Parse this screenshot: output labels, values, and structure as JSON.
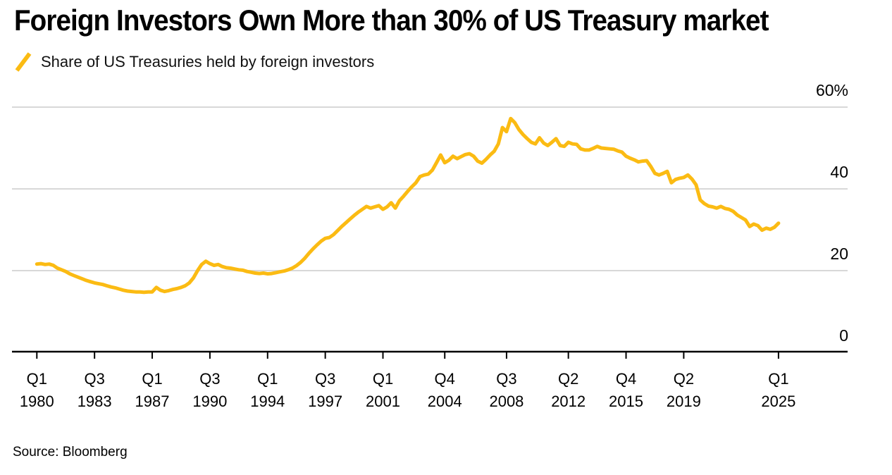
{
  "title": "Foreign Investors Own More than 30% of US Treasury market",
  "legend": {
    "label": "Share of US Treasuries held by foreign investors"
  },
  "source": "Source: Bloomberg",
  "colors": {
    "line": "#FBBB13",
    "grid": "#D8D8D8",
    "axis": "#000000",
    "text": "#000000"
  },
  "chart_data": {
    "type": "line",
    "title": "Foreign Investors Own More than 30% of US Treasury market",
    "series_name": "Share of US Treasuries held by foreign investors",
    "unit": "%",
    "x_start": "1980Q1",
    "x_end": "2025Q1",
    "x_step": "1 quarter",
    "ylim": [
      0,
      60
    ],
    "grid": "horizontal",
    "legend_position": "top-left",
    "y_ticks": [
      {
        "label": "60%",
        "value": 60
      },
      {
        "label": "40",
        "value": 40
      },
      {
        "label": "20",
        "value": 20
      },
      {
        "label": "0",
        "value": 0
      }
    ],
    "x_ticks": [
      {
        "quarter": "Q1",
        "year": "1980",
        "index": 0
      },
      {
        "quarter": "Q3",
        "year": "1983",
        "index": 14
      },
      {
        "quarter": "Q1",
        "year": "1987",
        "index": 28
      },
      {
        "quarter": "Q3",
        "year": "1990",
        "index": 42
      },
      {
        "quarter": "Q1",
        "year": "1994",
        "index": 56
      },
      {
        "quarter": "Q3",
        "year": "1997",
        "index": 70
      },
      {
        "quarter": "Q1",
        "year": "2001",
        "index": 84
      },
      {
        "quarter": "Q4",
        "year": "2004",
        "index": 99
      },
      {
        "quarter": "Q3",
        "year": "2008",
        "index": 114
      },
      {
        "quarter": "Q2",
        "year": "2012",
        "index": 129
      },
      {
        "quarter": "Q4",
        "year": "2015",
        "index": 143
      },
      {
        "quarter": "Q2",
        "year": "2019",
        "index": 157
      },
      {
        "quarter": "Q1",
        "year": "2025",
        "index": 180
      }
    ],
    "values": [
      21.6,
      21.7,
      21.5,
      21.6,
      21.3,
      20.6,
      20.2,
      19.8,
      19.2,
      18.8,
      18.4,
      18.0,
      17.6,
      17.3,
      17.0,
      16.8,
      16.6,
      16.3,
      16.0,
      15.8,
      15.5,
      15.2,
      15.0,
      14.9,
      14.8,
      14.8,
      14.7,
      14.8,
      14.8,
      15.9,
      15.2,
      14.9,
      15.1,
      15.4,
      15.6,
      15.9,
      16.3,
      17.0,
      18.2,
      20.0,
      21.5,
      22.3,
      21.7,
      21.3,
      21.5,
      21.0,
      20.7,
      20.6,
      20.4,
      20.2,
      20.1,
      19.8,
      19.6,
      19.4,
      19.3,
      19.4,
      19.2,
      19.3,
      19.5,
      19.7,
      19.9,
      20.2,
      20.6,
      21.2,
      22.0,
      23.0,
      24.2,
      25.3,
      26.3,
      27.2,
      27.9,
      28.1,
      28.8,
      29.8,
      30.8,
      31.7,
      32.6,
      33.5,
      34.3,
      35.0,
      35.7,
      35.3,
      35.6,
      35.9,
      35.0,
      35.6,
      36.6,
      35.3,
      37.1,
      38.2,
      39.4,
      40.5,
      41.5,
      43.0,
      43.4,
      43.6,
      44.6,
      46.4,
      48.3,
      46.4,
      47.0,
      48.0,
      47.4,
      47.9,
      48.4,
      48.6,
      48.0,
      46.8,
      46.3,
      47.2,
      48.3,
      49.2,
      51.0,
      55.0,
      54.0,
      57.2,
      56.2,
      54.5,
      53.3,
      52.3,
      51.4,
      51.0,
      52.5,
      51.2,
      50.6,
      51.4,
      52.3,
      50.6,
      50.4,
      51.4,
      51.0,
      50.9,
      49.8,
      49.5,
      49.5,
      49.9,
      50.4,
      50.0,
      49.9,
      49.8,
      49.7,
      49.3,
      49.0,
      48.0,
      47.5,
      47.1,
      46.6,
      46.8,
      46.9,
      45.5,
      43.8,
      43.4,
      43.8,
      44.3,
      41.5,
      42.3,
      42.6,
      42.8,
      43.4,
      42.4,
      41.0,
      37.3,
      36.4,
      35.8,
      35.6,
      35.3,
      35.7,
      35.2,
      35.0,
      34.5,
      33.6,
      33.0,
      32.4,
      30.8,
      31.4,
      31.0,
      29.9,
      30.4,
      30.1,
      30.6,
      31.6
    ]
  }
}
